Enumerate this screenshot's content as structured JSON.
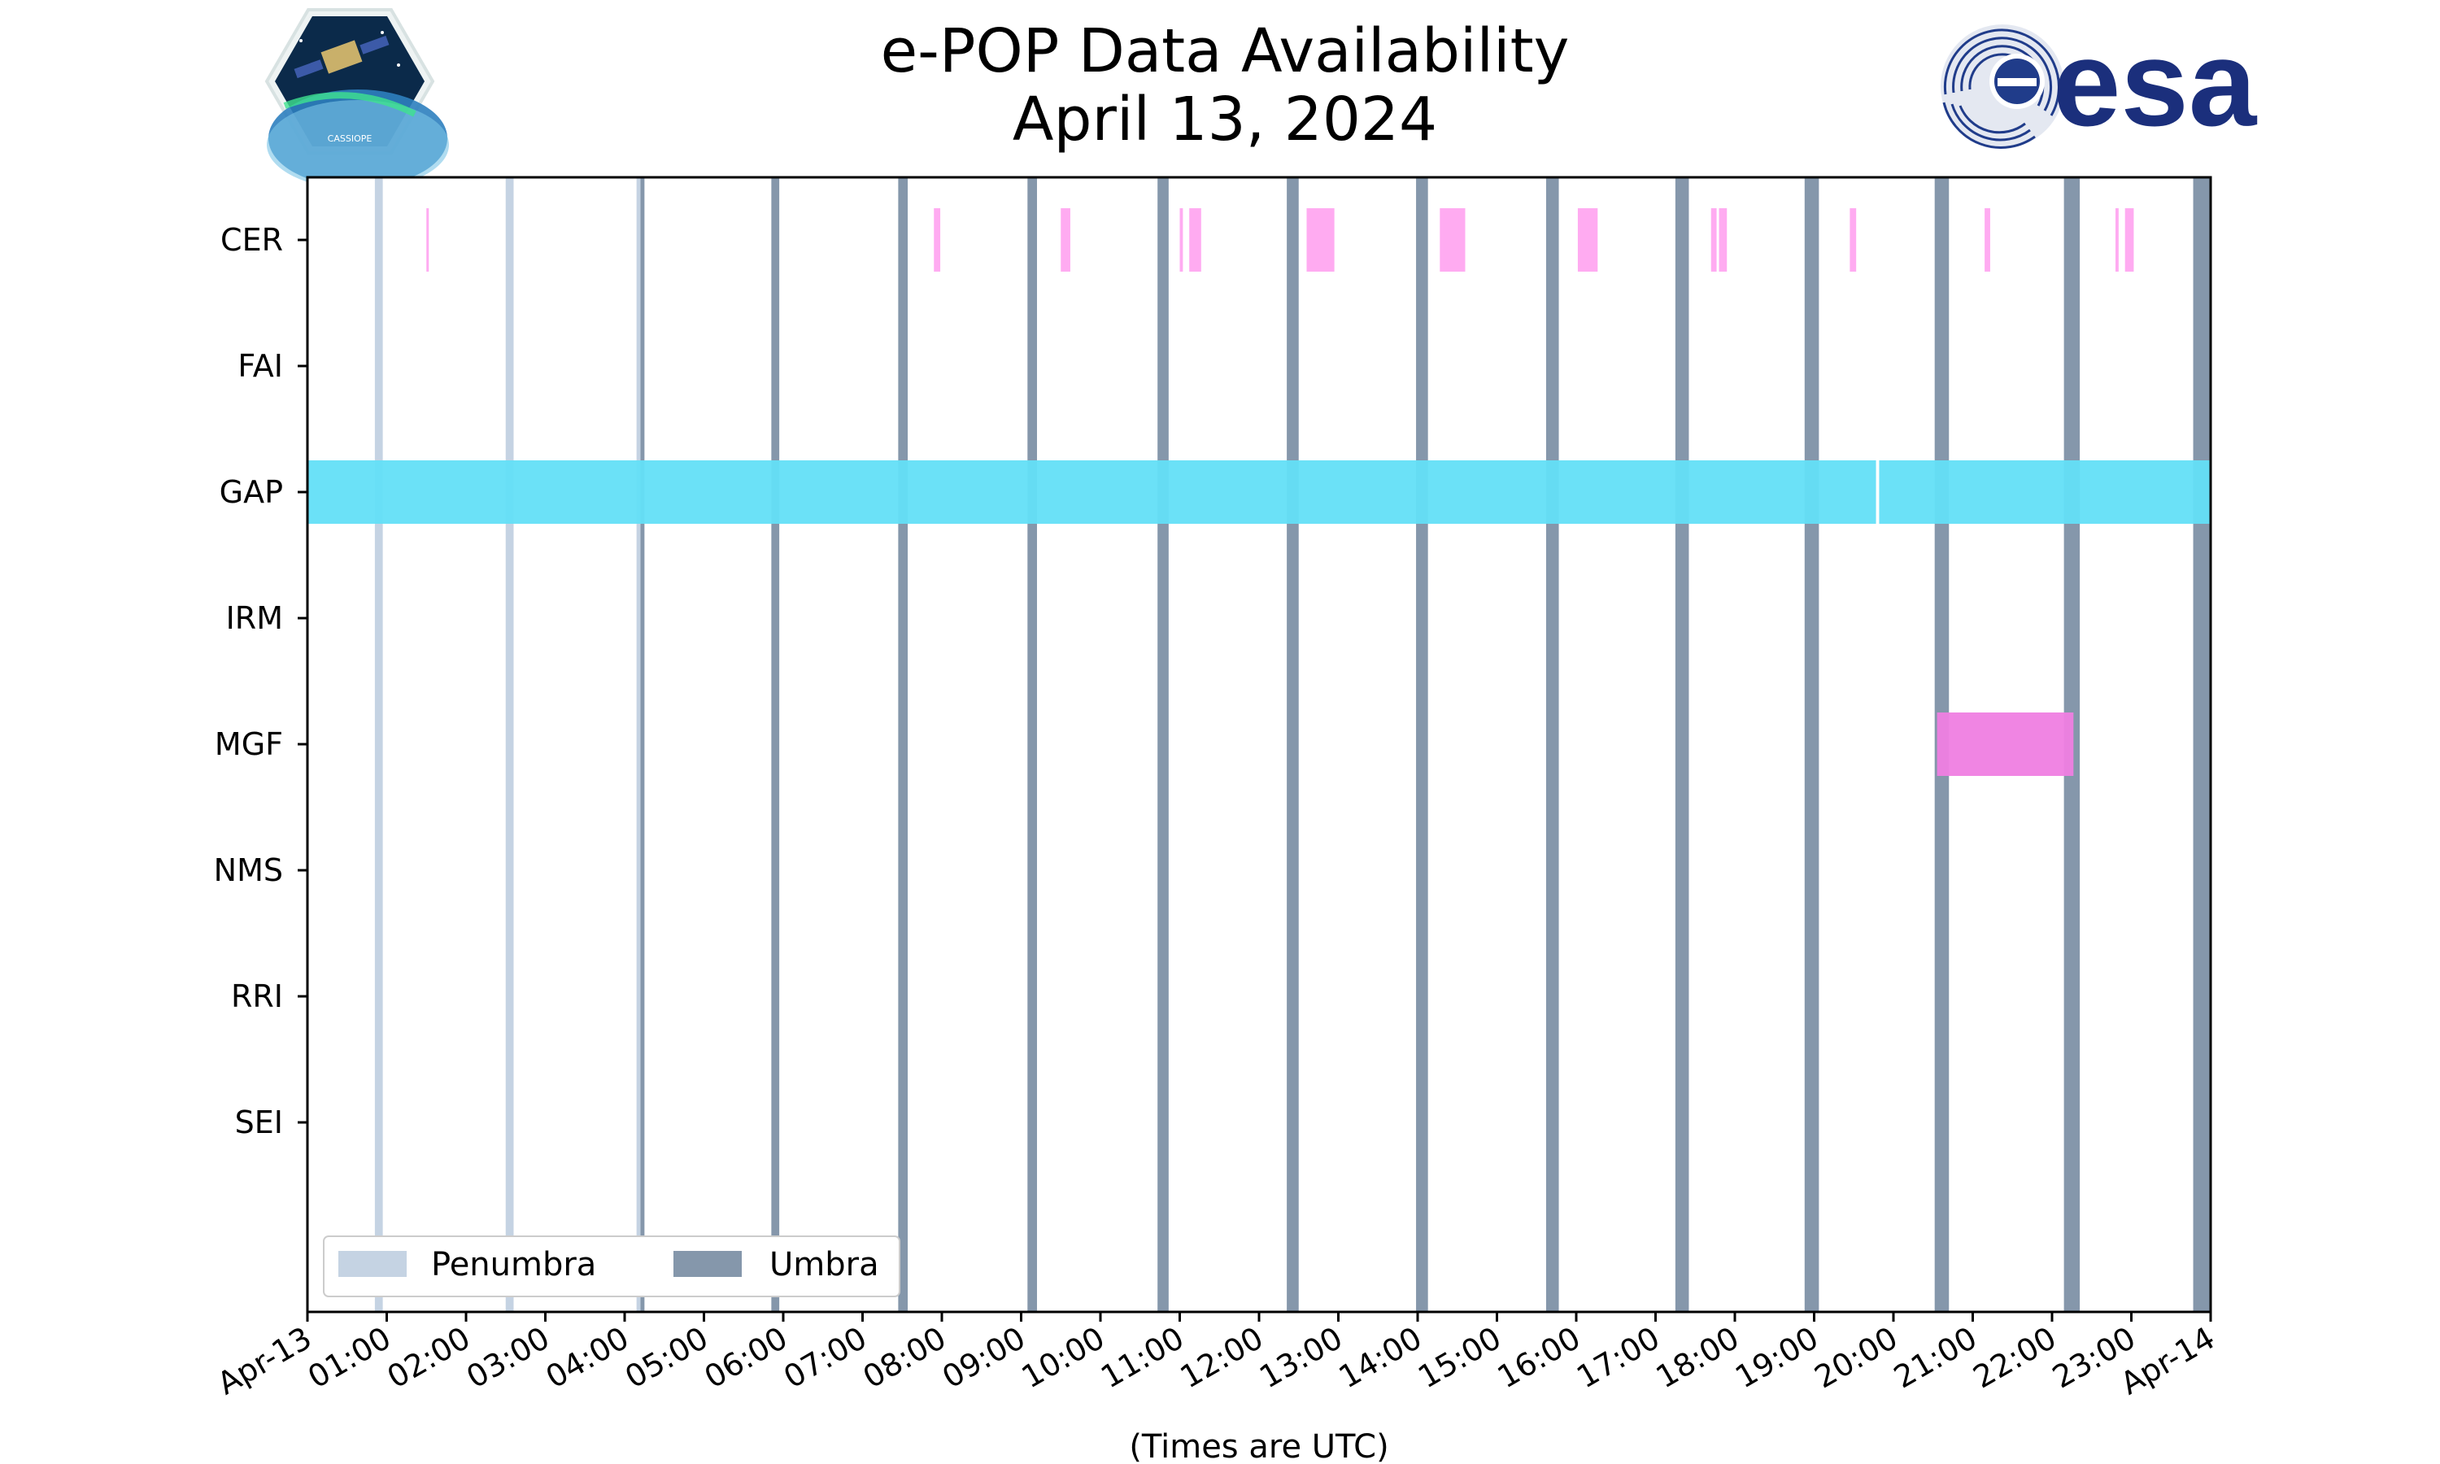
{
  "chart_data": {
    "type": "timeline",
    "title": "e-POP Data Availability",
    "subtitle": "April 13, 2024",
    "xlabel": "(Times are UTC)",
    "x_range_hours": [
      0,
      24
    ],
    "x_tick_labels": [
      "Apr-13",
      "01:00",
      "02:00",
      "03:00",
      "04:00",
      "05:00",
      "06:00",
      "07:00",
      "08:00",
      "09:00",
      "10:00",
      "11:00",
      "12:00",
      "13:00",
      "14:00",
      "15:00",
      "16:00",
      "17:00",
      "18:00",
      "19:00",
      "20:00",
      "21:00",
      "22:00",
      "23:00",
      "Apr-14"
    ],
    "instruments": [
      "CER",
      "FAI",
      "GAP",
      "IRM",
      "MGF",
      "NMS",
      "RRI",
      "SEI"
    ],
    "availability": [
      {
        "instrument": "CER",
        "color": "#ffa6f0",
        "intervals": [
          [
            1.5,
            1.53
          ],
          [
            7.9,
            7.98
          ],
          [
            9.5,
            9.62
          ],
          [
            11.0,
            11.04
          ],
          [
            11.12,
            11.27
          ],
          [
            12.6,
            12.95
          ],
          [
            14.28,
            14.6
          ],
          [
            16.02,
            16.27
          ],
          [
            17.7,
            17.77
          ],
          [
            17.8,
            17.9
          ],
          [
            19.45,
            19.53
          ],
          [
            21.15,
            21.22
          ],
          [
            22.8,
            22.84
          ],
          [
            22.92,
            23.03
          ]
        ]
      },
      {
        "instrument": "FAI",
        "color": "#ffa6f0",
        "intervals": []
      },
      {
        "instrument": "GAP",
        "color": "#63dff7",
        "intervals": [
          [
            0,
            19.78
          ],
          [
            19.82,
            24
          ]
        ]
      },
      {
        "instrument": "IRM",
        "color": "#ffa6f0",
        "intervals": []
      },
      {
        "instrument": "MGF",
        "color": "#ef7ee2",
        "intervals": [
          [
            20.55,
            22.27
          ]
        ]
      },
      {
        "instrument": "NMS",
        "color": "#ffa6f0",
        "intervals": []
      },
      {
        "instrument": "RRI",
        "color": "#ffa6f0",
        "intervals": []
      },
      {
        "instrument": "SEI",
        "color": "#ffa6f0",
        "intervals": []
      }
    ],
    "eclipses": [
      {
        "type": "penumbra",
        "start": 0.85,
        "end": 0.95
      },
      {
        "type": "penumbra",
        "start": 2.5,
        "end": 2.6
      },
      {
        "type": "penumbra",
        "start": 4.15,
        "end": 4.2
      },
      {
        "type": "umbra",
        "start": 4.2,
        "end": 4.25
      },
      {
        "type": "umbra",
        "start": 5.85,
        "end": 5.95
      },
      {
        "type": "umbra",
        "start": 7.45,
        "end": 7.57
      },
      {
        "type": "umbra",
        "start": 9.08,
        "end": 9.2
      },
      {
        "type": "umbra",
        "start": 10.72,
        "end": 10.86
      },
      {
        "type": "umbra",
        "start": 12.35,
        "end": 12.5
      },
      {
        "type": "umbra",
        "start": 13.98,
        "end": 14.13
      },
      {
        "type": "umbra",
        "start": 15.62,
        "end": 15.78
      },
      {
        "type": "umbra",
        "start": 17.25,
        "end": 17.42
      },
      {
        "type": "umbra",
        "start": 18.88,
        "end": 19.06
      },
      {
        "type": "umbra",
        "start": 20.52,
        "end": 20.7
      },
      {
        "type": "umbra",
        "start": 22.15,
        "end": 22.35
      },
      {
        "type": "umbra",
        "start": 23.78,
        "end": 24.0
      }
    ],
    "legend": {
      "placement": "lower-left",
      "items": [
        {
          "label": "Penumbra",
          "color": "#c5d3e3"
        },
        {
          "label": "Umbra",
          "color": "#8597ab"
        }
      ]
    }
  },
  "logos": [
    {
      "name": "CASSIOPE",
      "text": "CASSIOPE"
    },
    {
      "name": "ESA",
      "text": "esa"
    }
  ]
}
